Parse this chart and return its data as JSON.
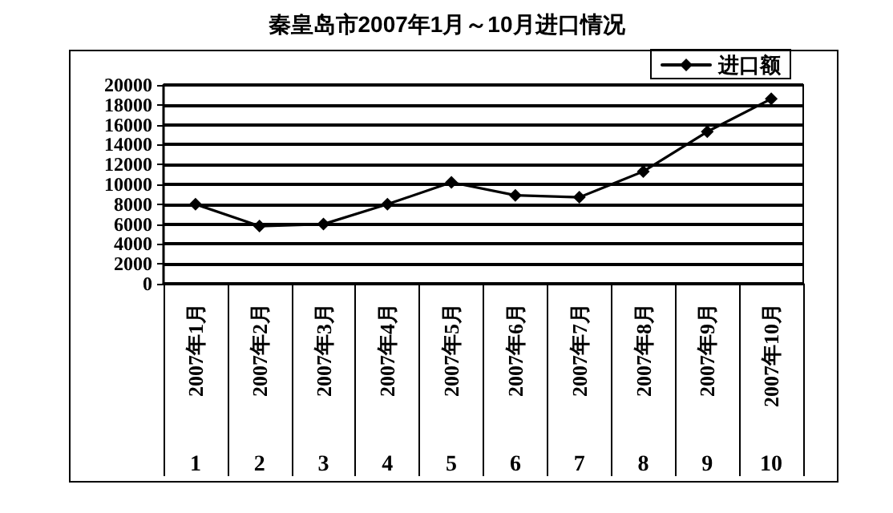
{
  "chart_data": {
    "type": "line",
    "title": "秦皇岛市2007年1月～10月进口情况",
    "categories": [
      "2007年1月",
      "2007年2月",
      "2007年3月",
      "2007年4月",
      "2007年5月",
      "2007年6月",
      "2007年7月",
      "2007年8月",
      "2007年9月",
      "2007年10月"
    ],
    "series": [
      {
        "name": "进口额",
        "color": "#000000",
        "values": [
          8000,
          5800,
          6000,
          8000,
          10200,
          8900,
          8700,
          11300,
          15300,
          18600
        ]
      }
    ],
    "ylim": [
      0,
      20000
    ],
    "yticks": [
      0,
      2000,
      4000,
      6000,
      8000,
      10000,
      12000,
      14000,
      16000,
      18000,
      20000
    ],
    "grid": "y",
    "legend": "top right",
    "marker": "diamond",
    "line_style": "solid",
    "annotations": [
      "1",
      "2",
      "3",
      "4",
      "5",
      "6",
      "7",
      "8",
      "9",
      "10"
    ]
  }
}
